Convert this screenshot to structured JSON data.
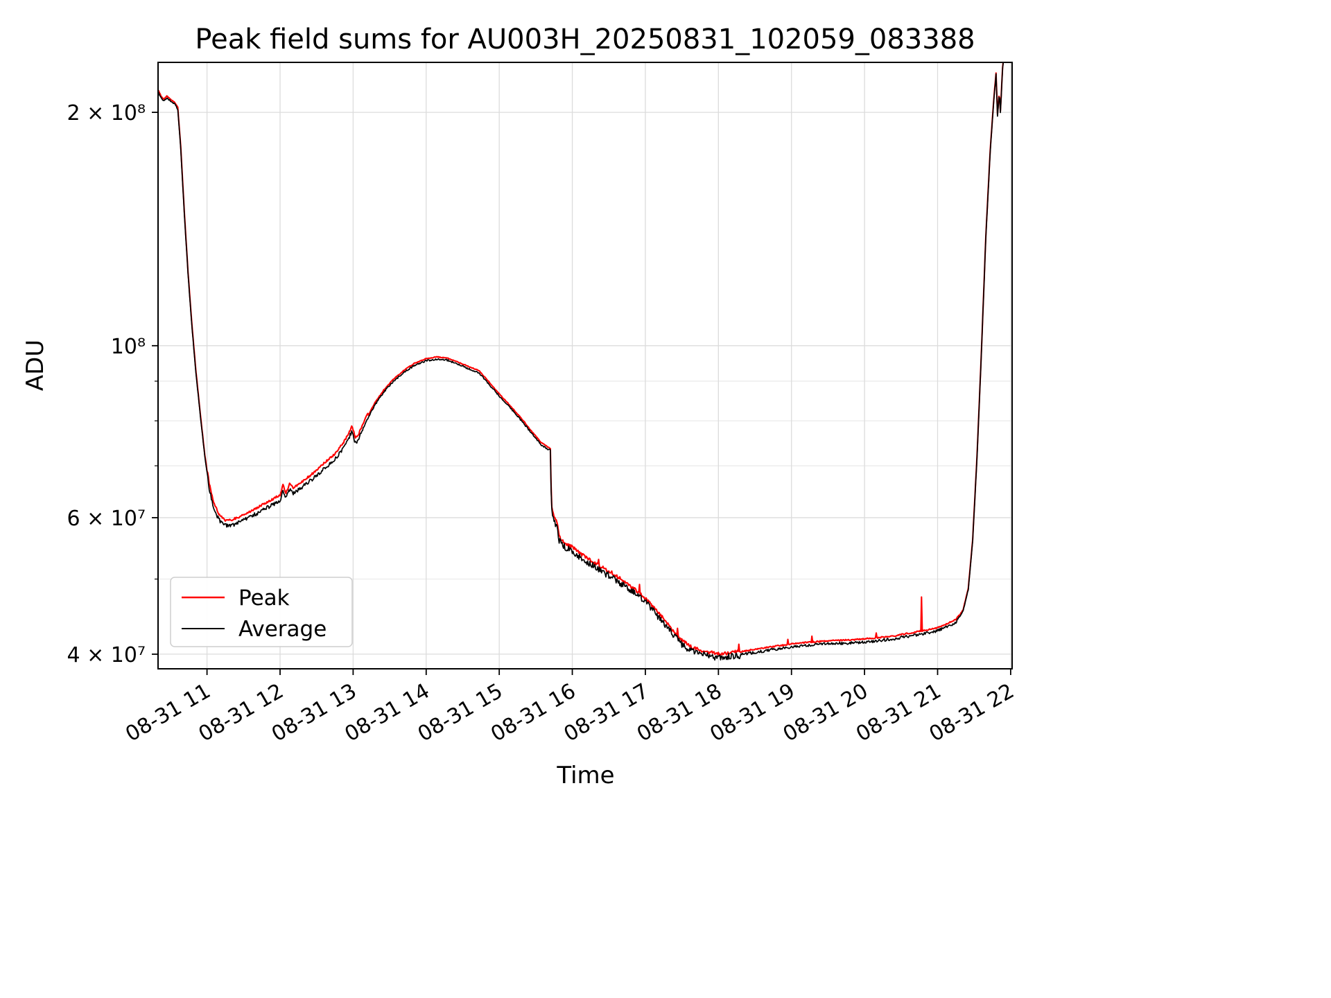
{
  "chart_data": {
    "type": "line",
    "title": "Peak field sums for AU003H_20250831_102059_083388",
    "xlabel": "Time",
    "ylabel": "ADU",
    "yscale": "log",
    "grid": true,
    "legend_position": "lower left",
    "xlim": [
      10.33,
      22.02
    ],
    "ylim": [
      38300000.0,
      232000000.0
    ],
    "x_unit": "hours on 08-31",
    "x_ticks": [
      {
        "t": 11,
        "label": "08-31 11"
      },
      {
        "t": 12,
        "label": "08-31 12"
      },
      {
        "t": 13,
        "label": "08-31 13"
      },
      {
        "t": 14,
        "label": "08-31 14"
      },
      {
        "t": 15,
        "label": "08-31 15"
      },
      {
        "t": 16,
        "label": "08-31 16"
      },
      {
        "t": 17,
        "label": "08-31 17"
      },
      {
        "t": 18,
        "label": "08-31 18"
      },
      {
        "t": 19,
        "label": "08-31 19"
      },
      {
        "t": 20,
        "label": "08-31 20"
      },
      {
        "t": 21,
        "label": "08-31 21"
      },
      {
        "t": 22,
        "label": "08-31 22"
      }
    ],
    "y_ticks": [
      {
        "v": 40000000.0,
        "label": "4 × 10⁷"
      },
      {
        "v": 60000000.0,
        "label": "6 × 10⁷"
      },
      {
        "v": 100000000.0,
        "label": "10⁸"
      },
      {
        "v": 200000000.0,
        "label": "2 × 10⁸"
      }
    ],
    "y_minor_ticks": [
      50000000.0,
      70000000.0,
      80000000.0,
      90000000.0
    ],
    "sample_step_hours": 0.01,
    "noise_seed": 42,
    "noise_regions": [
      [
        10.33,
        11.0,
        0.004
      ],
      [
        11.0,
        13.1,
        0.012
      ],
      [
        13.1,
        15.7,
        0.005
      ],
      [
        15.7,
        18.3,
        0.02
      ],
      [
        18.3,
        21.3,
        0.008
      ],
      [
        21.3,
        21.95,
        0.003
      ]
    ],
    "series": [
      {
        "name": "Peak",
        "color": "#ff0000",
        "derived_from": "Average",
        "offset_regions": [
          [
            10.33,
            11.0,
            0.004
          ],
          [
            11.0,
            13.2,
            0.013
          ],
          [
            13.2,
            15.7,
            0.005
          ],
          [
            15.7,
            21.3,
            0.007
          ],
          [
            21.3,
            21.95,
            0.003
          ]
        ],
        "spikes": [
          [
            16.36,
            53000000.0
          ],
          [
            16.54,
            51200000.0
          ],
          [
            16.92,
            49200000.0
          ],
          [
            17.1,
            46200000.0
          ],
          [
            17.44,
            43200000.0
          ],
          [
            18.28,
            41200000.0
          ],
          [
            18.95,
            41800000.0
          ],
          [
            19.28,
            42200000.0
          ],
          [
            20.16,
            42600000.0
          ],
          [
            20.78,
            47400000.0
          ]
        ]
      },
      {
        "name": "Average",
        "color": "#000000",
        "anchors": [
          [
            10.33,
            213000000.0
          ],
          [
            10.37,
            209000000.0
          ],
          [
            10.41,
            207000000.0
          ],
          [
            10.45,
            209000000.0
          ],
          [
            10.5,
            207000000.0
          ],
          [
            10.56,
            205000000.0
          ],
          [
            10.6,
            202000000.0
          ],
          [
            10.64,
            180000000.0
          ],
          [
            10.69,
            148000000.0
          ],
          [
            10.74,
            124000000.0
          ],
          [
            10.79,
            107000000.0
          ],
          [
            10.85,
            92000000.0
          ],
          [
            10.91,
            81000000.0
          ],
          [
            10.97,
            72000000.0
          ],
          [
            11.03,
            65500000.0
          ],
          [
            11.09,
            62000000.0
          ],
          [
            11.16,
            59800000.0
          ],
          [
            11.24,
            58700000.0
          ],
          [
            11.34,
            58800000.0
          ],
          [
            11.46,
            59400000.0
          ],
          [
            11.6,
            60300000.0
          ],
          [
            11.75,
            61400000.0
          ],
          [
            11.9,
            62500000.0
          ],
          [
            12.0,
            63300000.0
          ],
          [
            12.04,
            65200000.0
          ],
          [
            12.08,
            63600000.0
          ],
          [
            12.13,
            65400000.0
          ],
          [
            12.18,
            64600000.0
          ],
          [
            12.3,
            65800000.0
          ],
          [
            12.45,
            67500000.0
          ],
          [
            12.6,
            69500000.0
          ],
          [
            12.75,
            71500000.0
          ],
          [
            12.87,
            74000000.0
          ],
          [
            12.94,
            76000000.0
          ],
          [
            12.985,
            77800000.0
          ],
          [
            13.03,
            75000000.0
          ],
          [
            13.08,
            76000000.0
          ],
          [
            13.18,
            80000000.0
          ],
          [
            13.3,
            84000000.0
          ],
          [
            13.42,
            87200000.0
          ],
          [
            13.55,
            90000000.0
          ],
          [
            13.7,
            92500000.0
          ],
          [
            13.85,
            94500000.0
          ],
          [
            14.0,
            95700000.0
          ],
          [
            14.15,
            96200000.0
          ],
          [
            14.3,
            95800000.0
          ],
          [
            14.45,
            94600000.0
          ],
          [
            14.6,
            93300000.0
          ],
          [
            14.72,
            92400000.0
          ],
          [
            14.85,
            89500000.0
          ],
          [
            15.0,
            86200000.0
          ],
          [
            15.15,
            83200000.0
          ],
          [
            15.3,
            80200000.0
          ],
          [
            15.45,
            77000000.0
          ],
          [
            15.58,
            74500000.0
          ],
          [
            15.7,
            73300000.0
          ],
          [
            15.715,
            61500000.0
          ],
          [
            15.75,
            59500000.0
          ],
          [
            15.79,
            58800000.0
          ],
          [
            15.82,
            56200000.0
          ],
          [
            15.88,
            55300000.0
          ],
          [
            16.0,
            54500000.0
          ],
          [
            16.12,
            53400000.0
          ],
          [
            16.3,
            52000000.0
          ],
          [
            16.5,
            50700000.0
          ],
          [
            16.7,
            49300000.0
          ],
          [
            16.9,
            47700000.0
          ],
          [
            17.05,
            46300000.0
          ],
          [
            17.2,
            44600000.0
          ],
          [
            17.35,
            42800000.0
          ],
          [
            17.5,
            41300000.0
          ],
          [
            17.65,
            40400000.0
          ],
          [
            17.85,
            39900000.0
          ],
          [
            18.05,
            39700000.0
          ],
          [
            18.3,
            40000000.0
          ],
          [
            18.6,
            40400000.0
          ],
          [
            18.9,
            40800000.0
          ],
          [
            19.2,
            41100000.0
          ],
          [
            19.5,
            41300000.0
          ],
          [
            19.8,
            41400000.0
          ],
          [
            20.1,
            41600000.0
          ],
          [
            20.4,
            41900000.0
          ],
          [
            20.7,
            42400000.0
          ],
          [
            20.95,
            42800000.0
          ],
          [
            21.1,
            43300000.0
          ],
          [
            21.25,
            44000000.0
          ],
          [
            21.35,
            45500000.0
          ],
          [
            21.42,
            48500000.0
          ],
          [
            21.48,
            56000000.0
          ],
          [
            21.54,
            72000000.0
          ],
          [
            21.6,
            98000000.0
          ],
          [
            21.66,
            138000000.0
          ],
          [
            21.72,
            178000000.0
          ],
          [
            21.77,
            208000000.0
          ],
          [
            21.8,
            224000000.0
          ],
          [
            21.82,
            198000000.0
          ],
          [
            21.845,
            212000000.0
          ],
          [
            21.86,
            200000000.0
          ],
          [
            21.89,
            228000000.0
          ],
          [
            21.93,
            248000000.0
          ]
        ]
      }
    ]
  }
}
